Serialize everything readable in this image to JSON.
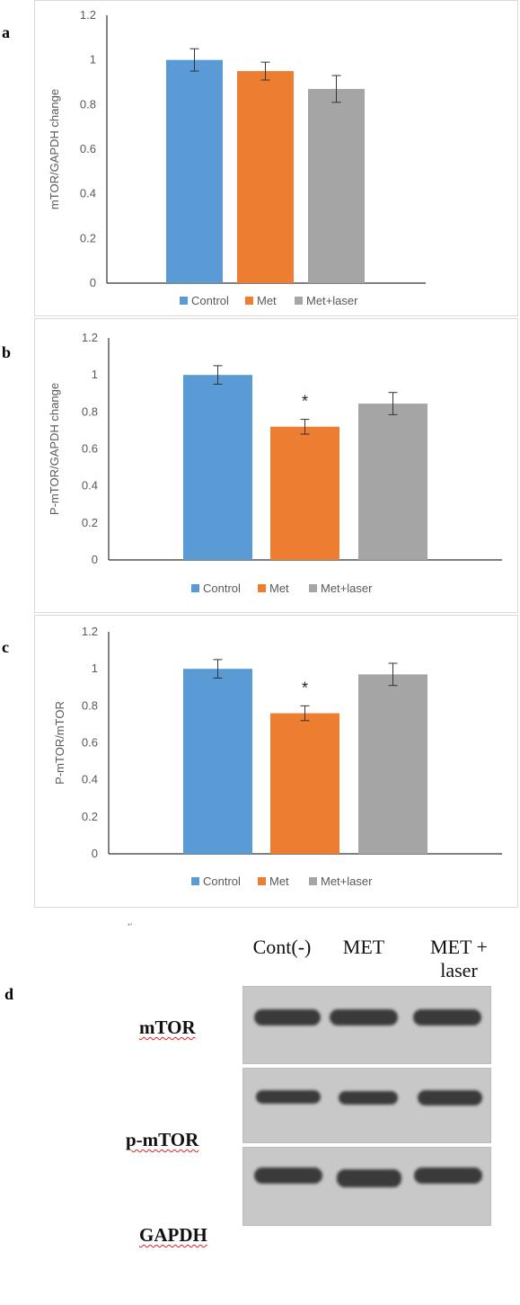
{
  "panels": [
    {
      "letter": "a"
    },
    {
      "letter": "b"
    },
    {
      "letter": "c"
    },
    {
      "letter": "d"
    }
  ],
  "chart_data": [
    {
      "type": "bar",
      "categories": [
        "Control",
        "Met",
        "Met+laser"
      ],
      "values": [
        1.0,
        0.95,
        0.87
      ],
      "errors": [
        0.05,
        0.04,
        0.06
      ],
      "significance": [
        "",
        "",
        ""
      ],
      "ylabel": "mTOR/GAPDH change",
      "ylim": [
        0,
        1.2
      ],
      "yticks": [
        "0",
        "0.2",
        "0.4",
        "0.6",
        "0.8",
        "1",
        "1.2"
      ],
      "legend": "bottom",
      "colors": [
        "#5b9bd5",
        "#ed7d31",
        "#a5a5a5"
      ]
    },
    {
      "type": "bar",
      "categories": [
        "Control",
        "Met",
        "Met+laser"
      ],
      "values": [
        1.0,
        0.72,
        0.845
      ],
      "errors": [
        0.05,
        0.04,
        0.06
      ],
      "significance": [
        "",
        "*",
        ""
      ],
      "ylabel": "P-mTOR/GAPDH change",
      "ylim": [
        0,
        1.2
      ],
      "yticks": [
        "0",
        "0.2",
        "0.4",
        "0.6",
        "0.8",
        "1",
        "1.2"
      ],
      "legend": "bottom",
      "colors": [
        "#5b9bd5",
        "#ed7d31",
        "#a5a5a5"
      ]
    },
    {
      "type": "bar",
      "categories": [
        "Control",
        "Met",
        "Met+laser"
      ],
      "values": [
        1.0,
        0.76,
        0.97
      ],
      "errors": [
        0.05,
        0.04,
        0.06
      ],
      "significance": [
        "",
        "*",
        ""
      ],
      "ylabel": "P-mTOR/mTOR",
      "ylim": [
        0,
        1.2
      ],
      "yticks": [
        "0",
        "0.2",
        "0.4",
        "0.6",
        "0.8",
        "1",
        "1.2"
      ],
      "legend": "bottom",
      "colors": [
        "#5b9bd5",
        "#ed7d31",
        "#a5a5a5"
      ]
    }
  ],
  "blot": {
    "columns": [
      "Cont(-)",
      "MET",
      "MET + laser"
    ],
    "rows": [
      "mTOR",
      "p-mTOR",
      "GAPDH"
    ]
  }
}
